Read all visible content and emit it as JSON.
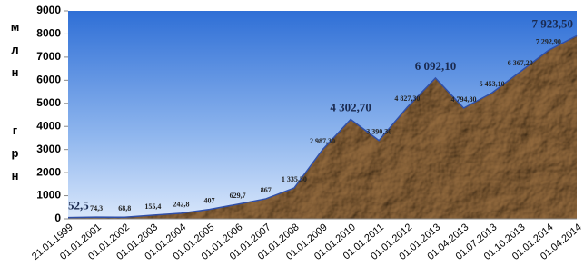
{
  "chart_data": {
    "type": "area",
    "y_label": "млн грн",
    "categories": [
      "21.01.1999",
      "01.01.2001",
      "01.01.2002",
      "01.01.2003",
      "01.01.2004",
      "01.01.2005",
      "01.01.2006",
      "01.01.2007",
      "01.01.2008",
      "01.01.2009",
      "01.01.2010",
      "01.01.2011",
      "01.01.2012",
      "01.01.2013",
      "01.04.2013",
      "01.07.2013",
      "01.10.2013",
      "01.01.2014",
      "01.04.2014"
    ],
    "values": [
      52.5,
      74.3,
      68.8,
      155.4,
      242.8,
      407,
      629.7,
      867,
      1335.5,
      2987.3,
      4302.7,
      3390.3,
      4827.3,
      6092.1,
      4794.8,
      5453.1,
      6367.2,
      7292.9,
      7923.5
    ],
    "value_labels": [
      "52,5",
      "74,3",
      "68,8",
      "155,4",
      "242,8",
      "407",
      "629,7",
      "867",
      "1 335,50",
      "2 987,30",
      "4 302,70",
      "3 390,30",
      "4 827,30",
      "6 092,10",
      "4 794,80",
      "5 453,10",
      "6 367,20",
      "7 292,90",
      "7 923,50"
    ],
    "color": "#9a7a55",
    "line_color": "#2f4fa8",
    "ylim": [
      0,
      9000
    ],
    "yticks": [
      0,
      1000,
      2000,
      3000,
      4000,
      5000,
      6000,
      7000,
      8000,
      9000
    ]
  }
}
